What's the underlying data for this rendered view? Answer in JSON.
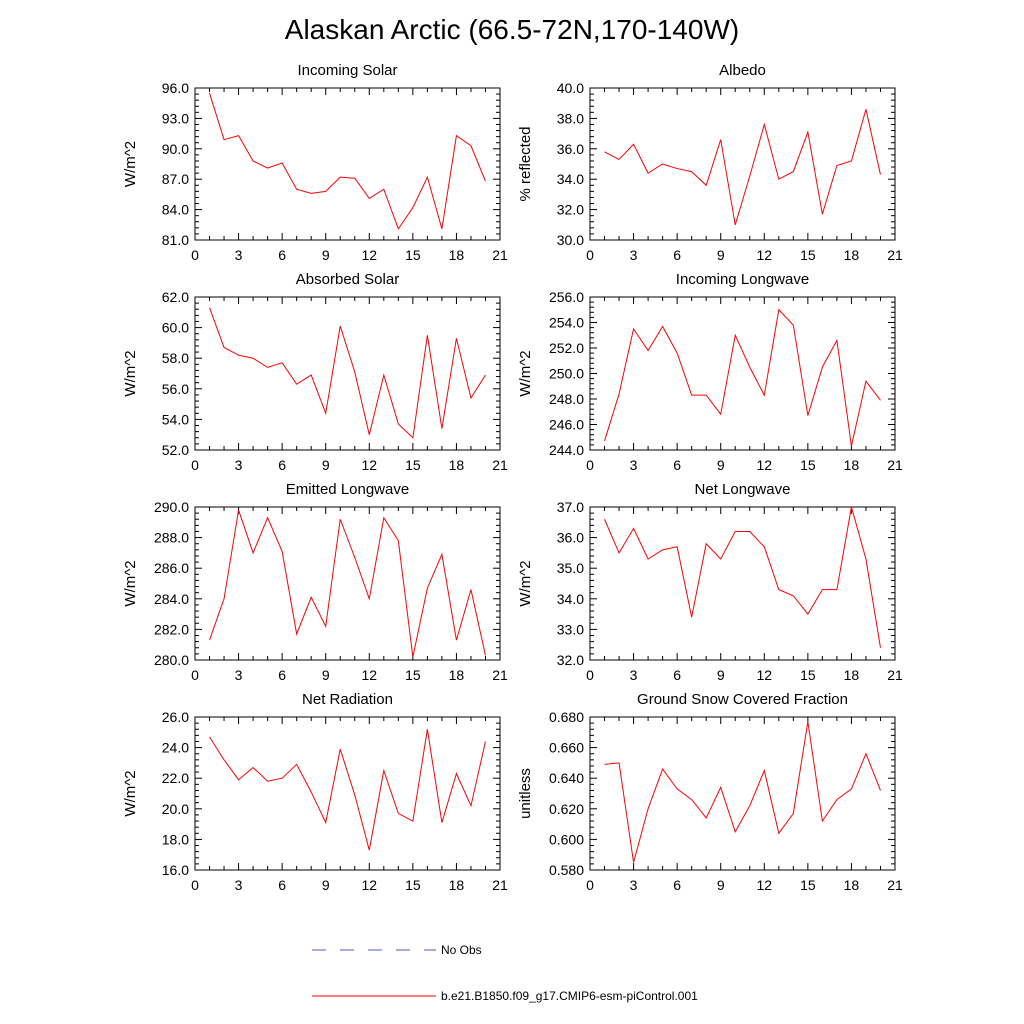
{
  "title": "Alaskan Arctic (66.5-72N,170-140W)",
  "chart_data": [
    {
      "type": "line",
      "title": "Incoming Solar",
      "ylabel": "W/m^2",
      "xlim": [
        0,
        21
      ],
      "xticks": [
        0,
        3,
        6,
        9,
        12,
        15,
        18,
        21
      ],
      "ylim": [
        81.0,
        96.0
      ],
      "yticks": [
        "81.0",
        "84.0",
        "87.0",
        "90.0",
        "93.0",
        "96.0"
      ],
      "x": [
        1,
        2,
        3,
        4,
        5,
        6,
        7,
        8,
        9,
        10,
        11,
        12,
        13,
        14,
        15,
        16,
        17,
        18,
        19,
        20
      ],
      "series": [
        {
          "values": [
            95.5,
            90.9,
            91.3,
            88.8,
            88.1,
            88.6,
            86.0,
            85.6,
            85.8,
            87.2,
            87.1,
            85.1,
            86.0,
            82.1,
            84.2,
            87.2,
            82.1,
            91.3,
            90.3,
            86.8
          ],
          "color": "#ff0000"
        }
      ]
    },
    {
      "type": "line",
      "title": "Albedo",
      "ylabel": "% reflected",
      "xlim": [
        0,
        21
      ],
      "xticks": [
        0,
        3,
        6,
        9,
        12,
        15,
        18,
        21
      ],
      "ylim": [
        30.0,
        40.0
      ],
      "yticks": [
        "30.0",
        "32.0",
        "34.0",
        "36.0",
        "38.0",
        "40.0"
      ],
      "x": [
        1,
        2,
        3,
        4,
        5,
        6,
        7,
        8,
        9,
        10,
        11,
        12,
        13,
        14,
        15,
        16,
        17,
        18,
        19,
        20
      ],
      "series": [
        {
          "values": [
            35.8,
            35.3,
            36.3,
            34.4,
            35.0,
            34.7,
            34.5,
            33.6,
            36.6,
            31.0,
            34.2,
            37.6,
            34.0,
            34.5,
            37.1,
            31.7,
            34.9,
            35.2,
            38.6,
            34.3
          ],
          "color": "#ff0000"
        }
      ]
    },
    {
      "type": "line",
      "title": "Absorbed Solar",
      "ylabel": "W/m^2",
      "xlim": [
        0,
        21
      ],
      "xticks": [
        0,
        3,
        6,
        9,
        12,
        15,
        18,
        21
      ],
      "ylim": [
        52.0,
        62.0
      ],
      "yticks": [
        "52.0",
        "54.0",
        "56.0",
        "58.0",
        "60.0",
        "62.0"
      ],
      "x": [
        1,
        2,
        3,
        4,
        5,
        6,
        7,
        8,
        9,
        10,
        11,
        12,
        13,
        14,
        15,
        16,
        17,
        18,
        19,
        20
      ],
      "series": [
        {
          "values": [
            61.3,
            58.7,
            58.2,
            58.0,
            57.4,
            57.7,
            56.3,
            56.9,
            54.4,
            60.1,
            57.1,
            53.0,
            56.9,
            53.7,
            52.8,
            59.5,
            53.4,
            59.3,
            55.4,
            56.9
          ],
          "color": "#ff0000"
        }
      ]
    },
    {
      "type": "line",
      "title": "Incoming Longwave",
      "ylabel": "W/m^2",
      "xlim": [
        0,
        21
      ],
      "xticks": [
        0,
        3,
        6,
        9,
        12,
        15,
        18,
        21
      ],
      "ylim": [
        244.0,
        256.0
      ],
      "yticks": [
        "244.0",
        "246.0",
        "248.0",
        "250.0",
        "252.0",
        "254.0",
        "256.0"
      ],
      "x": [
        1,
        2,
        3,
        4,
        5,
        6,
        7,
        8,
        9,
        10,
        11,
        12,
        13,
        14,
        15,
        16,
        17,
        18,
        19,
        20
      ],
      "series": [
        {
          "values": [
            244.7,
            248.4,
            253.5,
            251.8,
            253.7,
            251.6,
            248.3,
            248.3,
            246.8,
            253.0,
            250.5,
            248.3,
            255.0,
            253.8,
            246.7,
            250.5,
            252.6,
            244.3,
            249.4,
            247.9
          ],
          "color": "#ff0000"
        }
      ]
    },
    {
      "type": "line",
      "title": "Emitted Longwave",
      "ylabel": "W/m^2",
      "xlim": [
        0,
        21
      ],
      "xticks": [
        0,
        3,
        6,
        9,
        12,
        15,
        18,
        21
      ],
      "ylim": [
        280.0,
        290.0
      ],
      "yticks": [
        "280.0",
        "282.0",
        "284.0",
        "286.0",
        "288.0",
        "290.0"
      ],
      "x": [
        1,
        2,
        3,
        4,
        5,
        6,
        7,
        8,
        9,
        10,
        11,
        12,
        13,
        14,
        15,
        16,
        17,
        18,
        19,
        20
      ],
      "series": [
        {
          "values": [
            281.3,
            284.0,
            289.8,
            287.0,
            289.3,
            287.1,
            281.7,
            284.1,
            282.2,
            289.2,
            286.7,
            284.0,
            289.3,
            287.8,
            280.2,
            284.7,
            286.9,
            281.3,
            284.6,
            280.3
          ],
          "color": "#ff0000"
        }
      ]
    },
    {
      "type": "line",
      "title": "Net Longwave",
      "ylabel": "W/m^2",
      "xlim": [
        0,
        21
      ],
      "xticks": [
        0,
        3,
        6,
        9,
        12,
        15,
        18,
        21
      ],
      "ylim": [
        32.0,
        37.0
      ],
      "yticks": [
        "32.0",
        "33.0",
        "34.0",
        "35.0",
        "36.0",
        "37.0"
      ],
      "x": [
        1,
        2,
        3,
        4,
        5,
        6,
        7,
        8,
        9,
        10,
        11,
        12,
        13,
        14,
        15,
        16,
        17,
        18,
        19,
        20
      ],
      "series": [
        {
          "values": [
            36.6,
            35.5,
            36.3,
            35.3,
            35.6,
            35.7,
            33.4,
            35.8,
            35.3,
            36.2,
            36.2,
            35.7,
            34.3,
            34.1,
            33.5,
            34.3,
            34.3,
            37.0,
            35.3,
            32.4
          ],
          "color": "#ff0000"
        }
      ]
    },
    {
      "type": "line",
      "title": "Net Radiation",
      "ylabel": "W/m^2",
      "xlim": [
        0,
        21
      ],
      "xticks": [
        0,
        3,
        6,
        9,
        12,
        15,
        18,
        21
      ],
      "ylim": [
        16.0,
        26.0
      ],
      "yticks": [
        "16.0",
        "18.0",
        "20.0",
        "22.0",
        "24.0",
        "26.0"
      ],
      "x": [
        1,
        2,
        3,
        4,
        5,
        6,
        7,
        8,
        9,
        10,
        11,
        12,
        13,
        14,
        15,
        16,
        17,
        18,
        19,
        20
      ],
      "series": [
        {
          "values": [
            24.7,
            23.2,
            21.9,
            22.7,
            21.8,
            22.0,
            22.9,
            21.1,
            19.1,
            23.9,
            20.9,
            17.3,
            22.5,
            19.7,
            19.2,
            25.2,
            19.1,
            22.3,
            20.2,
            24.4
          ],
          "color": "#ff0000"
        }
      ]
    },
    {
      "type": "line",
      "title": "Ground Snow Covered Fraction",
      "ylabel": "unitless",
      "xlim": [
        0,
        21
      ],
      "xticks": [
        0,
        3,
        6,
        9,
        12,
        15,
        18,
        21
      ],
      "ylim": [
        0.58,
        0.68
      ],
      "yticks": [
        "0.580",
        "0.600",
        "0.620",
        "0.640",
        "0.660",
        "0.680"
      ],
      "x": [
        1,
        2,
        3,
        4,
        5,
        6,
        7,
        8,
        9,
        10,
        11,
        12,
        13,
        14,
        15,
        16,
        17,
        18,
        19,
        20
      ],
      "series": [
        {
          "values": [
            0.649,
            0.65,
            0.585,
            0.62,
            0.646,
            0.633,
            0.626,
            0.614,
            0.634,
            0.605,
            0.622,
            0.645,
            0.604,
            0.617,
            0.677,
            0.612,
            0.626,
            0.633,
            0.656,
            0.632
          ],
          "color": "#ff0000"
        }
      ]
    }
  ],
  "legend": [
    {
      "label": "No Obs",
      "color": "#5555cc",
      "style": "dashed"
    },
    {
      "label": "b.e21.B1850.f09_g17.CMIP6-esm-piControl.001",
      "color": "#ff0000",
      "style": "solid"
    }
  ]
}
